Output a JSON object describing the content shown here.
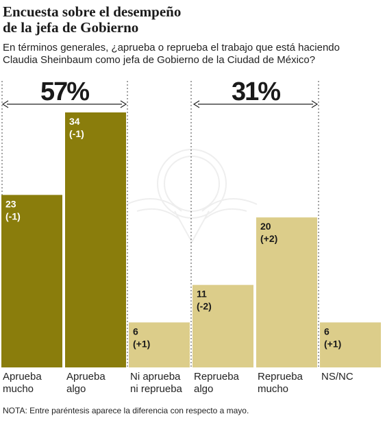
{
  "header": {
    "title_line1": "Encuesta sobre el desempeño",
    "title_line2": "de la jefa de Gobierno",
    "subtitle_line1": "En términos generales, ¿aprueba o reprueba el trabajo que está haciendo",
    "subtitle_line2": "Claudia Sheinbaum como jefa de Gobierno de la Ciudad de México?"
  },
  "footer": {
    "note": "NOTA: Entre paréntesis aparece la diferencia con respecto a mayo."
  },
  "colors": {
    "approve": "#8a7d0c",
    "reprove": "#dccd8a",
    "label_text": "#ffffff",
    "label_text_light": "#1a1a1a"
  },
  "chart_data": {
    "type": "bar",
    "categories": [
      [
        "Aprueba",
        "mucho"
      ],
      [
        "Aprueba",
        "algo"
      ],
      [
        "Ni aprueba",
        "ni reprueba"
      ],
      [
        "Reprueba",
        "algo"
      ],
      [
        "Reprueba",
        "mucho"
      ],
      [
        "NS/NC"
      ]
    ],
    "values": [
      23,
      34,
      6,
      11,
      20,
      6
    ],
    "changes": [
      "(-1)",
      "(-1)",
      "(+1)",
      "(-2)",
      "(+2)",
      "(+1)"
    ],
    "groups": [
      {
        "total": "57%",
        "first": 0,
        "last": 1
      },
      {
        "total": "31%",
        "first": 3,
        "last": 4
      }
    ],
    "bar_colors": [
      "approve",
      "approve",
      "reprove",
      "reprove",
      "reprove",
      "reprove"
    ],
    "ylim": [
      0,
      34
    ]
  }
}
